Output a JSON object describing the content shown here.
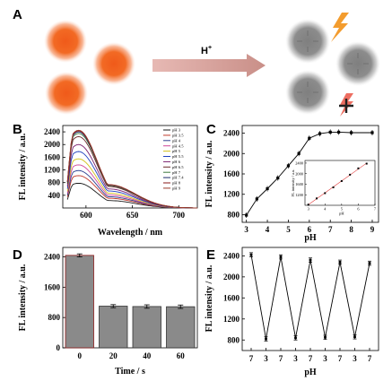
{
  "panel_a": {
    "letter": "A",
    "arrow_label_base": "H",
    "arrow_label_sup": "+"
  },
  "colors": {
    "orange": "#f26a24",
    "gray": "#8c8c8c",
    "arrow": "#d9a09a",
    "bolt": "#f39c2e",
    "bar": "#8a8a8a",
    "line": "#000000",
    "inset_line": "#e03a3a"
  },
  "icons": [
    "lightning-bolt-icon",
    "blocked-lightning-bolt-icon"
  ],
  "chart_data": [
    {
      "panel": "B",
      "type": "line",
      "xlabel": "Wavelength / nm",
      "ylabel": "FL intensity / a.u.",
      "xlim": [
        575,
        720
      ],
      "ylim": [
        0,
        2600
      ],
      "xticks": [
        600,
        650,
        700
      ],
      "yticks": [
        400,
        800,
        1200,
        1600,
        2000,
        2400
      ],
      "legend_position": "top-right",
      "series": [
        {
          "name": "pH 3",
          "color": "#1a1a1a",
          "peak": 780
        },
        {
          "name": "pH 3.5",
          "color": "#c0392b",
          "peak": 1020
        },
        {
          "name": "pH 4",
          "color": "#2c3e8f",
          "peak": 1180
        },
        {
          "name": "pH 4.5",
          "color": "#d1479a",
          "peak": 1360
        },
        {
          "name": "pH 5",
          "color": "#d4c21a",
          "peak": 1550
        },
        {
          "name": "pH 5.5",
          "color": "#1f3fbf",
          "peak": 1780
        },
        {
          "name": "pH 6",
          "color": "#7a1f6e",
          "peak": 2000
        },
        {
          "name": "pH 6.5",
          "color": "#6b2a2a",
          "peak": 2250
        },
        {
          "name": "pH 7",
          "color": "#3f7a3f",
          "peak": 2350
        },
        {
          "name": "pH 7.4",
          "color": "#1a2a6b",
          "peak": 2400
        },
        {
          "name": "pH 8",
          "color": "#8a1a1a",
          "peak": 2430
        },
        {
          "name": "pH 9",
          "color": "#9a3a2a",
          "peak": 2450
        }
      ]
    },
    {
      "panel": "C",
      "type": "line",
      "xlabel": "pH",
      "ylabel": "FL intensity / a.u.",
      "xlim": [
        2.8,
        9.3
      ],
      "ylim": [
        650,
        2550
      ],
      "xticks": [
        3,
        4,
        5,
        6,
        7,
        8,
        9
      ],
      "yticks": [
        800,
        1200,
        1600,
        2000,
        2400
      ],
      "x": [
        3,
        3.5,
        4,
        4.5,
        5,
        5.5,
        6,
        6.5,
        7,
        7.4,
        8,
        9
      ],
      "y": [
        790,
        1110,
        1310,
        1520,
        1760,
        2000,
        2300,
        2390,
        2420,
        2420,
        2410,
        2410
      ],
      "inset": {
        "type": "line",
        "xlabel": "pH",
        "ylabel": "FL intensity / a.u.",
        "xlim": [
          2.8,
          7.0
        ],
        "ylim": [
          800,
          2500
        ],
        "xticks": [
          3,
          4,
          5,
          6,
          7
        ],
        "yticks": [
          1200,
          1600,
          2000,
          2400
        ],
        "x": [
          3,
          3.5,
          4,
          4.5,
          5,
          5.5,
          6,
          6.5
        ],
        "y": [
          820,
          1060,
          1260,
          1480,
          1720,
          1960,
          2200,
          2380
        ]
      }
    },
    {
      "panel": "D",
      "type": "bar",
      "xlabel": "Time / s",
      "ylabel": "FL intensity / a.u.",
      "categories": [
        "0",
        "20",
        "40",
        "60"
      ],
      "values": [
        2440,
        1100,
        1090,
        1085
      ],
      "errors": [
        40,
        40,
        45,
        45
      ],
      "ylim": [
        0,
        2650
      ],
      "yticks": [
        0,
        800,
        1600,
        2400
      ]
    },
    {
      "panel": "E",
      "type": "line",
      "xlabel": "pH",
      "ylabel": "FL intensity / a.u.",
      "categories": [
        "7",
        "3",
        "7",
        "3",
        "7",
        "3",
        "7",
        "3",
        "7"
      ],
      "values": [
        2420,
        820,
        2380,
        840,
        2320,
        850,
        2280,
        860,
        2260
      ],
      "errors": [
        40,
        40,
        40,
        40,
        40,
        40,
        40,
        40,
        40
      ],
      "ylim": [
        600,
        2560
      ],
      "yticks": [
        800,
        1200,
        1600,
        2000,
        2400
      ]
    }
  ]
}
